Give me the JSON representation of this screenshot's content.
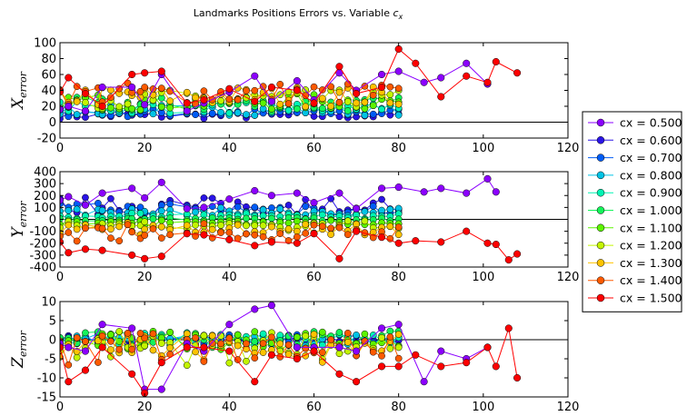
{
  "figure": {
    "title": "Landmarks Positions Errors vs. Variable",
    "title_var": "c",
    "title_var_sub": "x"
  },
  "legend": {
    "placement": "right-center",
    "entries": [
      {
        "label": "cx = 0.500",
        "color": "#8b00ff"
      },
      {
        "label": "cx = 0.600",
        "color": "#2a14e6"
      },
      {
        "label": "cx = 0.700",
        "color": "#005cf5"
      },
      {
        "label": "cx = 0.800",
        "color": "#00c3e6"
      },
      {
        "label": "cx = 0.900",
        "color": "#00f5b4"
      },
      {
        "label": "cx = 1.000",
        "color": "#14f55a"
      },
      {
        "label": "cx = 1.100",
        "color": "#5cf500"
      },
      {
        "label": "cx = 1.200",
        "color": "#c3f500"
      },
      {
        "label": "cx = 1.300",
        "color": "#ffc300"
      },
      {
        "label": "cx = 1.400",
        "color": "#ff5a00"
      },
      {
        "label": "cx = 1.500",
        "color": "#ff0000"
      }
    ]
  },
  "chart_data": [
    {
      "type": "line",
      "id": "x_error",
      "ylabel": "X",
      "ylabel_sub": "error",
      "xlim": [
        0,
        120
      ],
      "ylim": [
        -20,
        100
      ],
      "xticks": [
        0,
        20,
        40,
        60,
        80,
        100,
        120
      ],
      "yticks": [
        -20,
        0,
        20,
        40,
        60,
        80,
        100
      ],
      "grid": false,
      "series": [
        {
          "name": "cx = 0.500",
          "x": [
            0,
            2,
            6,
            10,
            17,
            20,
            24,
            30,
            34,
            40,
            46,
            50,
            56,
            60,
            66,
            70,
            76,
            80,
            86,
            90,
            96,
            101
          ],
          "y": [
            16,
            20,
            14,
            44,
            44,
            22,
            60,
            14,
            24,
            38,
            58,
            26,
            52,
            28,
            62,
            40,
            60,
            64,
            50,
            56,
            74,
            48
          ]
        },
        {
          "name": "cx = 1.500",
          "x": [
            0,
            2,
            6,
            10,
            17,
            20,
            24,
            30,
            34,
            40,
            46,
            50,
            56,
            60,
            66,
            70,
            76,
            80,
            84,
            90,
            96,
            101,
            103,
            108
          ],
          "y": [
            38,
            56,
            36,
            20,
            60,
            62,
            64,
            24,
            28,
            42,
            26,
            44,
            40,
            24,
            70,
            36,
            44,
            92,
            74,
            32,
            58,
            50,
            76,
            62
          ]
        }
      ]
    },
    {
      "type": "line",
      "id": "y_error",
      "ylabel": "Y",
      "ylabel_sub": "error",
      "xlim": [
        0,
        120
      ],
      "ylim": [
        -400,
        400
      ],
      "xticks": [
        0,
        20,
        40,
        60,
        80,
        100,
        120
      ],
      "yticks": [
        -400,
        -300,
        -200,
        -100,
        0,
        100,
        200,
        300,
        400
      ],
      "grid": false,
      "series": [
        {
          "name": "cx = 0.500",
          "x": [
            0,
            2,
            6,
            10,
            17,
            20,
            24,
            30,
            34,
            40,
            46,
            50,
            56,
            60,
            66,
            70,
            76,
            80,
            86,
            90,
            96,
            101,
            103
          ],
          "y": [
            160,
            190,
            120,
            220,
            260,
            180,
            310,
            90,
            100,
            170,
            240,
            200,
            220,
            140,
            220,
            90,
            260,
            270,
            230,
            260,
            220,
            340,
            230
          ]
        },
        {
          "name": "cx = 1.500",
          "x": [
            0,
            2,
            6,
            10,
            17,
            20,
            24,
            30,
            34,
            40,
            46,
            50,
            56,
            60,
            66,
            70,
            76,
            80,
            84,
            90,
            96,
            101,
            103,
            106,
            108
          ],
          "y": [
            -190,
            -280,
            -250,
            -260,
            -300,
            -330,
            -310,
            -120,
            -130,
            -170,
            -220,
            -190,
            -200,
            -120,
            -330,
            -100,
            -150,
            -200,
            -180,
            -190,
            -100,
            -200,
            -210,
            -340,
            -290
          ]
        }
      ]
    },
    {
      "type": "line",
      "id": "z_error",
      "ylabel": "Z",
      "ylabel_sub": "error",
      "xlim": [
        0,
        120
      ],
      "ylim": [
        -15,
        10
      ],
      "xticks": [
        0,
        20,
        40,
        60,
        80,
        100,
        120
      ],
      "yticks": [
        -15,
        -10,
        -5,
        0,
        5,
        10
      ],
      "grid": false,
      "series": [
        {
          "name": "cx = 0.500",
          "x": [
            0,
            2,
            6,
            10,
            17,
            20,
            24,
            30,
            34,
            40,
            46,
            50,
            56,
            60,
            66,
            70,
            76,
            80,
            86,
            90,
            96,
            101
          ],
          "y": [
            -1,
            -2,
            -3,
            4,
            3,
            -13,
            -13,
            -1,
            -3,
            4,
            8,
            9,
            -2,
            -2,
            -2,
            -3,
            3,
            4,
            -11,
            -3,
            -5,
            -2
          ]
        },
        {
          "name": "cx = 1.500",
          "x": [
            0,
            2,
            6,
            10,
            17,
            20,
            24,
            30,
            34,
            40,
            46,
            50,
            56,
            60,
            66,
            70,
            76,
            80,
            84,
            90,
            96,
            101,
            103,
            106,
            108
          ],
          "y": [
            -2,
            -11,
            -8,
            -2,
            -9,
            -14,
            -6,
            -2,
            -2,
            -3,
            -11,
            -4,
            -5,
            -3,
            -9,
            -11,
            -7,
            -7,
            -4,
            -7,
            -6,
            -2,
            -7,
            3,
            -10
          ]
        }
      ]
    }
  ]
}
